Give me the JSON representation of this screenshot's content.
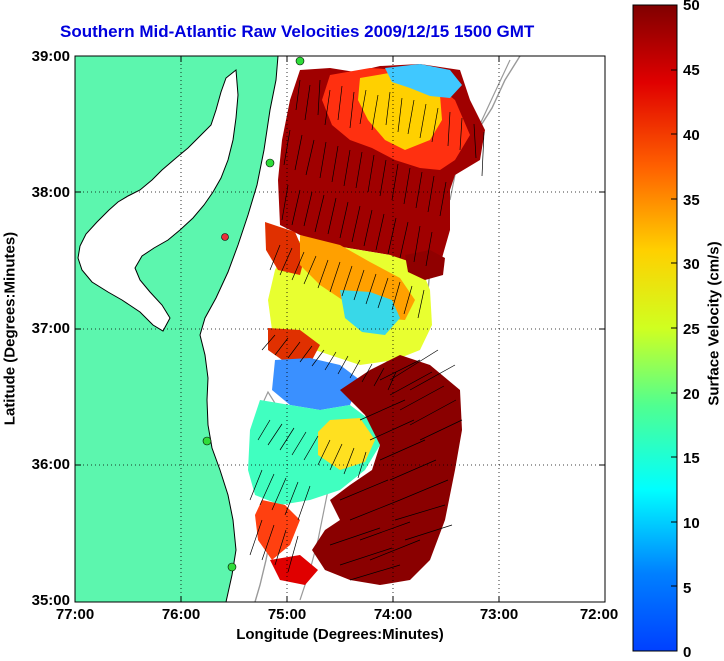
{
  "title": "Southern Mid-Atlantic Raw Velocities 2009/12/15 1500 GMT",
  "axes": {
    "xlabel": "Longitude (Degrees:Minutes)",
    "ylabel": "Latitude (Degrees:Minutes)",
    "x_ticks": [
      "77:00",
      "76:00",
      "75:00",
      "74:00",
      "73:00",
      "72:00"
    ],
    "y_ticks": [
      "39:00",
      "38:00",
      "37:00",
      "36:00",
      "35:00"
    ],
    "x_range": [
      -77,
      -72
    ],
    "y_range": [
      35,
      39
    ],
    "grid": "dotted"
  },
  "colorbar": {
    "label": "Surface Velocity (cm/s)",
    "ticks": [
      "50",
      "45",
      "40",
      "35",
      "30",
      "25",
      "20",
      "15",
      "10",
      "5",
      "0"
    ],
    "range": [
      0,
      50
    ],
    "colormap": "jet"
  },
  "colors": {
    "land": "#5cf6ae",
    "water": "#ffffff",
    "coastline": "#000000",
    "bathymetry": "#9a9a9a",
    "station": "#2fdc3a",
    "station_alt": "#e8303a",
    "title": "#0000dd"
  },
  "legend": "colorbar right"
}
